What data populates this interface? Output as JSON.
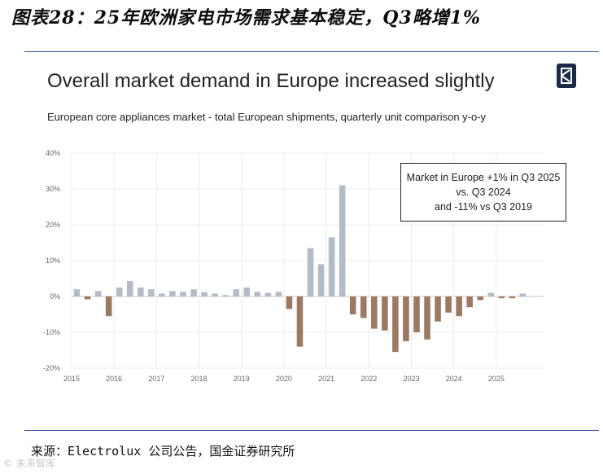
{
  "figure_title": "图表28：25年欧洲家电市场需求基本稳定，Q3略增1%",
  "source": "来源：Electrolux 公司公告，国金证券研究所",
  "watermark": "© 未来智库",
  "colors": {
    "positive": "#b3bcc6",
    "negative": "#9c7a61",
    "rule": "#2f5597",
    "logo_bg": "#1c2b4a"
  },
  "logo": {
    "icon": "electrolux-logo-icon"
  },
  "chart_data": {
    "type": "bar",
    "title": "Overall market demand in Europe increased slightly",
    "subtitle": "European core appliances market - total European shipments, quarterly unit comparison y-o-y",
    "ylim": [
      -20,
      40
    ],
    "yticks": [
      40,
      30,
      20,
      10,
      0,
      -10,
      -20
    ],
    "ytick_labels": [
      "40%",
      "30%",
      "20%",
      "10%",
      "0%",
      "-10%",
      "-20%"
    ],
    "grid": true,
    "years": [
      "2015",
      "2016",
      "2017",
      "2018",
      "2019",
      "2020",
      "2021",
      "2022",
      "2023",
      "2024",
      "2025"
    ],
    "categories": [
      "2015Q1",
      "2015Q2",
      "2015Q3",
      "2015Q4",
      "2016Q1",
      "2016Q2",
      "2016Q3",
      "2016Q4",
      "2017Q1",
      "2017Q2",
      "2017Q3",
      "2017Q4",
      "2018Q1",
      "2018Q2",
      "2018Q3",
      "2018Q4",
      "2019Q1",
      "2019Q2",
      "2019Q3",
      "2019Q4",
      "2020Q1",
      "2020Q2",
      "2020Q3",
      "2020Q4",
      "2021Q1",
      "2021Q2",
      "2021Q3",
      "2021Q4",
      "2022Q1",
      "2022Q2",
      "2022Q3",
      "2022Q4",
      "2023Q1",
      "2023Q2",
      "2023Q3",
      "2023Q4",
      "2024Q1",
      "2024Q2",
      "2024Q3",
      "2024Q4",
      "2025Q1",
      "2025Q2",
      "2025Q3"
    ],
    "values": [
      2.0,
      -0.8,
      1.5,
      -5.5,
      2.5,
      4.3,
      2.5,
      2.0,
      0.8,
      1.5,
      1.3,
      2.0,
      1.2,
      0.8,
      0.4,
      2.0,
      2.5,
      1.3,
      1.0,
      1.3,
      -3.5,
      -14.0,
      13.5,
      9.0,
      16.5,
      31.0,
      -5.0,
      -6.0,
      -9.0,
      -9.5,
      -15.5,
      -12.5,
      -10.0,
      -12.0,
      -7.0,
      -4.5,
      -5.5,
      -3.0,
      -1.0,
      1.0,
      -0.5,
      -0.5,
      0.8
    ],
    "annotation": [
      "Market in Europe +1% in Q3 2025",
      "vs. Q3 2024",
      "and -11% vs Q3 2019"
    ]
  }
}
